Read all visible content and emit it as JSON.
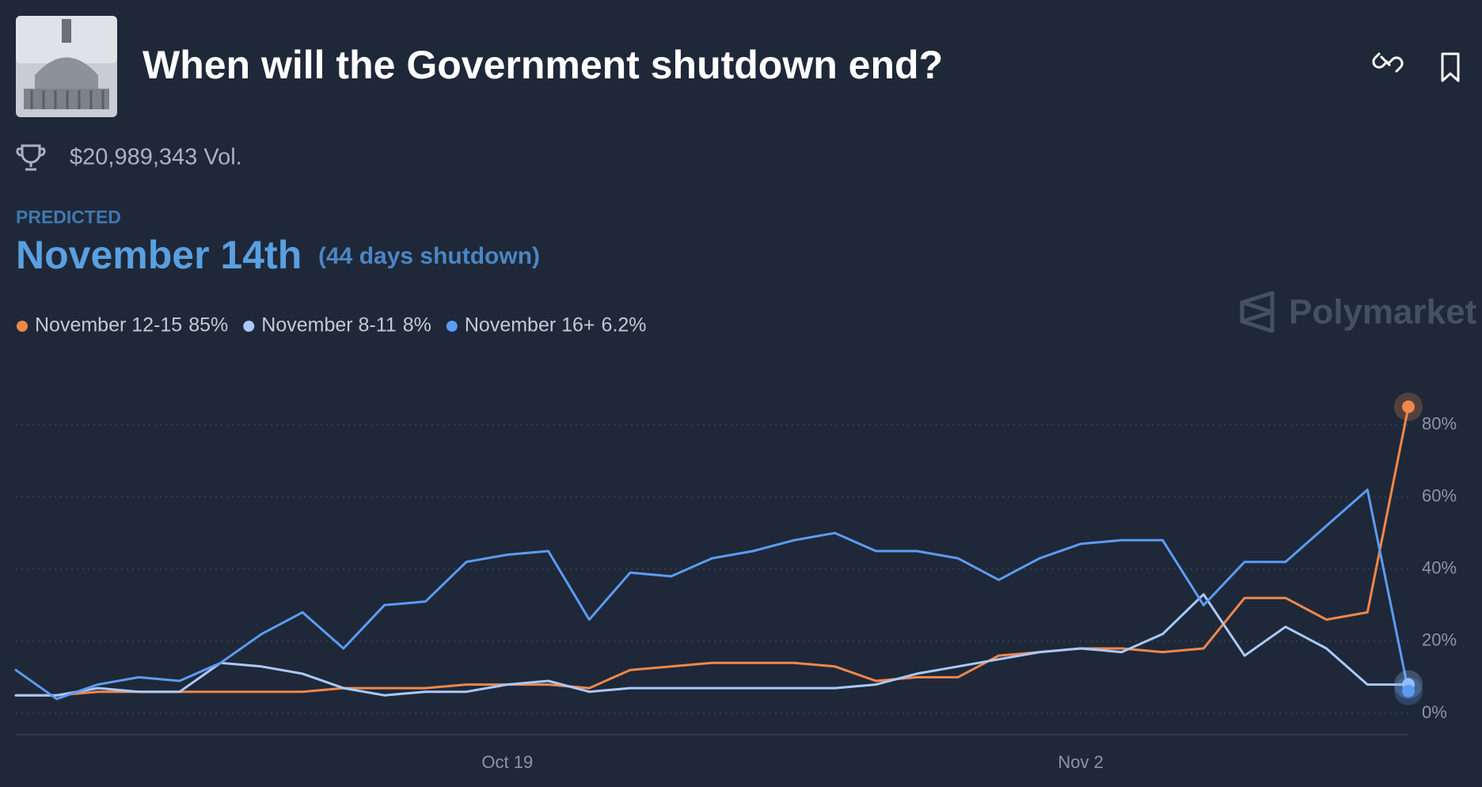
{
  "header": {
    "title": "When will the Government shutdown end?",
    "volume": "$20,989,343 Vol."
  },
  "prediction": {
    "label": "PREDICTED",
    "date": "November 14th",
    "detail": "(44 days shutdown)"
  },
  "watermark": "Polymarket",
  "chart_data": {
    "type": "line",
    "categories": [
      null,
      null,
      null,
      null,
      null,
      null,
      null,
      null,
      null,
      null,
      null,
      null,
      "Oct 19",
      null,
      null,
      null,
      null,
      null,
      null,
      null,
      null,
      null,
      null,
      null,
      null,
      null,
      "Nov 2",
      null,
      null,
      null,
      null,
      null,
      null,
      null,
      null
    ],
    "series": [
      {
        "name": "November 12-15",
        "current_label": "85%",
        "color": "#f0884a",
        "values": [
          5,
          5,
          6,
          6,
          6,
          6,
          6,
          6,
          7,
          7,
          7,
          8,
          8,
          8,
          7,
          12,
          13,
          14,
          14,
          14,
          13,
          9,
          10,
          10,
          16,
          17,
          18,
          18,
          17,
          18,
          32,
          32,
          26,
          28,
          85
        ]
      },
      {
        "name": "November 8-11",
        "current_label": "8%",
        "color": "#a9c9ff",
        "values": [
          5,
          5,
          7,
          6,
          6,
          14,
          13,
          11,
          7,
          5,
          6,
          6,
          8,
          9,
          6,
          7,
          7,
          7,
          7,
          7,
          7,
          8,
          11,
          13,
          15,
          17,
          18,
          17,
          22,
          33,
          16,
          24,
          18,
          8,
          8
        ]
      },
      {
        "name": "November 16+",
        "current_label": "6.2%",
        "color": "#5b9cf6",
        "values": [
          12,
          4,
          8,
          10,
          9,
          14,
          22,
          28,
          18,
          30,
          31,
          42,
          44,
          45,
          26,
          39,
          38,
          43,
          45,
          48,
          50,
          45,
          45,
          43,
          37,
          43,
          47,
          48,
          48,
          30,
          42,
          42,
          52,
          62,
          6.2
        ]
      }
    ],
    "ylim": [
      0,
      90
    ],
    "yticks": [
      {
        "value": 0,
        "label": "0%"
      },
      {
        "value": 20,
        "label": "20%"
      },
      {
        "value": 40,
        "label": "40%"
      },
      {
        "value": 60,
        "label": "60%"
      },
      {
        "value": 80,
        "label": "80%"
      }
    ],
    "grid": true
  }
}
